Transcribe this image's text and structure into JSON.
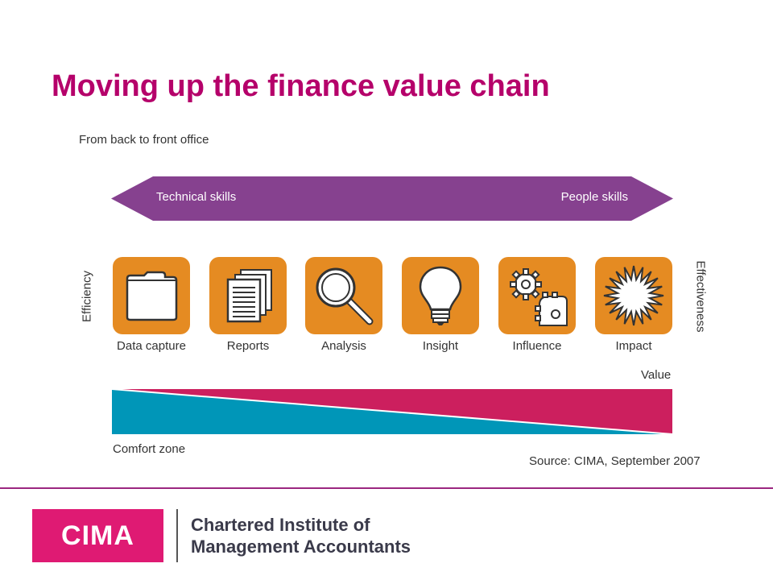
{
  "title": "Moving up the finance value chain",
  "subtitle": "From back to front office",
  "arrow": {
    "left_label": "Technical skills",
    "right_label": "People skills",
    "color": "#86418f"
  },
  "side_left": "Efficiency",
  "side_right": "Effectiveness",
  "stages": [
    {
      "label": "Data capture",
      "icon": "folder-icon"
    },
    {
      "label": "Reports",
      "icon": "documents-icon"
    },
    {
      "label": "Analysis",
      "icon": "magnifier-icon"
    },
    {
      "label": "Insight",
      "icon": "lightbulb-icon"
    },
    {
      "label": "Influence",
      "icon": "gears-icon"
    },
    {
      "label": "Impact",
      "icon": "starburst-icon"
    }
  ],
  "value_label": "Value",
  "comfort_label": "Comfort zone",
  "source": "Source: CIMA, September 2007",
  "colors": {
    "accent": "#b5006a",
    "box": "#e58b22",
    "value": "#cc1f5e",
    "comfort": "#0096b8"
  },
  "footer": {
    "logo": "CIMA",
    "org_line1": "Chartered Institute of",
    "org_line2": "Management Accountants"
  }
}
